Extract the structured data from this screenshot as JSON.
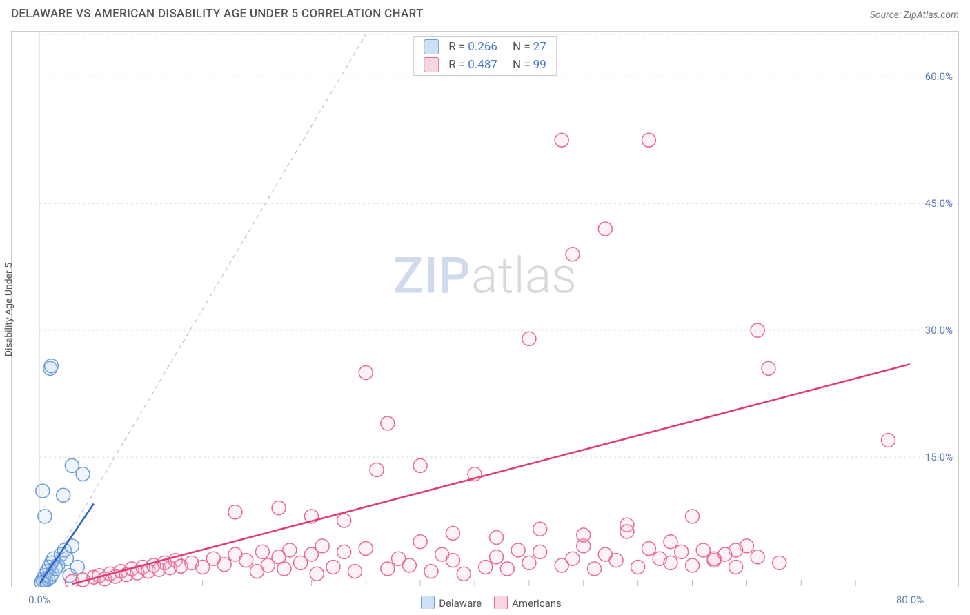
{
  "title": "DELAWARE VS AMERICAN DISABILITY AGE UNDER 5 CORRELATION CHART",
  "source": "Source: ZipAtlas.com",
  "ylabel": "Disability Age Under 5",
  "watermark": {
    "part1": "ZIP",
    "part2": "atlas"
  },
  "chart": {
    "type": "scatter",
    "background_color": "#ffffff",
    "grid_color": "#d8d8d8",
    "axis_color": "#cccccc",
    "tick_color": "#bbbbbb",
    "label_color": "#5b7db1",
    "xlim": [
      0,
      80
    ],
    "ylim": [
      0,
      65
    ],
    "x_axis_ticks": [
      0,
      80
    ],
    "x_axis_labels": [
      "0.0%",
      "80.0%"
    ],
    "x_minor_ticks": [
      5,
      10,
      15,
      20,
      25,
      30,
      35,
      40,
      45,
      50,
      55,
      60,
      65,
      70,
      75
    ],
    "y_gridlines": [
      15,
      30,
      45,
      60,
      65
    ],
    "y_axis_labels": [
      {
        "v": 15,
        "t": "15.0%"
      },
      {
        "v": 30,
        "t": "30.0%"
      },
      {
        "v": 45,
        "t": "45.0%"
      },
      {
        "v": 60,
        "t": "60.0%"
      }
    ],
    "marker_radius": 10,
    "marker_stroke_width": 1.5,
    "marker_fill_opacity": 0.18,
    "series": [
      {
        "name": "Delaware",
        "color_stroke": "#6b9bd8",
        "color_fill": "#a9c6ea",
        "trend_color": "#2a64c9",
        "trend_width": 2.5,
        "trend": {
          "x1": 0,
          "y1": 0,
          "x2": 5,
          "y2": 9.5
        },
        "points": [
          [
            0.2,
            0.2
          ],
          [
            0.3,
            0.5
          ],
          [
            0.4,
            0.3
          ],
          [
            0.5,
            1.0
          ],
          [
            0.6,
            0.4
          ],
          [
            0.7,
            1.5
          ],
          [
            0.8,
            0.6
          ],
          [
            0.9,
            2.0
          ],
          [
            1.0,
            0.8
          ],
          [
            1.1,
            2.5
          ],
          [
            1.2,
            1.2
          ],
          [
            1.3,
            3.0
          ],
          [
            1.5,
            1.8
          ],
          [
            1.7,
            2.2
          ],
          [
            2.0,
            3.5
          ],
          [
            2.3,
            4.0
          ],
          [
            2.5,
            3.0
          ],
          [
            3.0,
            4.5
          ],
          [
            1.0,
            25.5
          ],
          [
            1.1,
            25.8
          ],
          [
            2.2,
            10.5
          ],
          [
            3.0,
            14.0
          ],
          [
            4.0,
            13.0
          ],
          [
            0.5,
            8.0
          ],
          [
            0.3,
            11.0
          ],
          [
            2.8,
            1.0
          ],
          [
            3.5,
            2.0
          ]
        ]
      },
      {
        "name": "Americans",
        "color_stroke": "#e86a93",
        "color_fill": "#f5b8cc",
        "trend_color": "#e03a72",
        "trend_width": 2.5,
        "trend": {
          "x1": 3,
          "y1": 0,
          "x2": 80,
          "y2": 26
        },
        "points": [
          [
            3,
            0.3
          ],
          [
            4,
            0.5
          ],
          [
            5,
            0.8
          ],
          [
            5.5,
            1.0
          ],
          [
            6,
            0.6
          ],
          [
            6.5,
            1.2
          ],
          [
            7,
            0.9
          ],
          [
            7.5,
            1.5
          ],
          [
            8,
            1.1
          ],
          [
            8.5,
            1.8
          ],
          [
            9,
            1.3
          ],
          [
            9.5,
            2.0
          ],
          [
            10,
            1.5
          ],
          [
            10.5,
            2.2
          ],
          [
            11,
            1.7
          ],
          [
            11.5,
            2.5
          ],
          [
            12,
            1.9
          ],
          [
            12.5,
            2.8
          ],
          [
            13,
            2.1
          ],
          [
            14,
            2.5
          ],
          [
            15,
            2.0
          ],
          [
            16,
            3.0
          ],
          [
            17,
            2.3
          ],
          [
            18,
            3.5
          ],
          [
            19,
            2.8
          ],
          [
            20,
            1.5
          ],
          [
            20.5,
            3.8
          ],
          [
            21,
            2.2
          ],
          [
            22,
            3.2
          ],
          [
            22.5,
            1.8
          ],
          [
            23,
            4.0
          ],
          [
            24,
            2.5
          ],
          [
            25,
            3.5
          ],
          [
            25.5,
            1.2
          ],
          [
            26,
            4.5
          ],
          [
            27,
            2.0
          ],
          [
            28,
            3.8
          ],
          [
            29,
            1.5
          ],
          [
            30,
            4.2
          ],
          [
            18,
            8.5
          ],
          [
            22,
            9.0
          ],
          [
            25,
            8.0
          ],
          [
            28,
            7.5
          ],
          [
            31,
            13.5
          ],
          [
            32,
            1.8
          ],
          [
            33,
            3.0
          ],
          [
            34,
            2.2
          ],
          [
            35,
            14.0
          ],
          [
            36,
            1.5
          ],
          [
            37,
            3.5
          ],
          [
            38,
            2.8
          ],
          [
            39,
            1.2
          ],
          [
            40,
            13.0
          ],
          [
            41,
            2.0
          ],
          [
            42,
            3.2
          ],
          [
            43,
            1.8
          ],
          [
            44,
            4.0
          ],
          [
            45,
            2.5
          ],
          [
            46,
            3.8
          ],
          [
            32,
            19.0
          ],
          [
            30,
            25.0
          ],
          [
            48,
            2.2
          ],
          [
            49,
            3.0
          ],
          [
            50,
            4.5
          ],
          [
            51,
            1.8
          ],
          [
            52,
            3.5
          ],
          [
            53,
            2.8
          ],
          [
            54,
            7.0
          ],
          [
            55,
            2.0
          ],
          [
            56,
            4.2
          ],
          [
            57,
            3.0
          ],
          [
            45,
            29.0
          ],
          [
            49,
            39.0
          ],
          [
            48,
            52.5
          ],
          [
            58,
            2.5
          ],
          [
            59,
            3.8
          ],
          [
            60,
            2.2
          ],
          [
            61,
            4.0
          ],
          [
            62,
            2.8
          ],
          [
            63,
            3.5
          ],
          [
            64,
            2.0
          ],
          [
            52,
            42.0
          ],
          [
            56,
            52.5
          ],
          [
            65,
            4.5
          ],
          [
            66,
            3.2
          ],
          [
            67,
            25.5
          ],
          [
            68,
            2.5
          ],
          [
            66,
            30.0
          ],
          [
            62,
            3.0
          ],
          [
            58,
            5.0
          ],
          [
            60,
            8.0
          ],
          [
            64,
            4.0
          ],
          [
            78,
            17.0
          ],
          [
            35,
            5.0
          ],
          [
            38,
            6.0
          ],
          [
            42,
            5.5
          ],
          [
            46,
            6.5
          ],
          [
            50,
            5.8
          ],
          [
            54,
            6.2
          ]
        ]
      }
    ],
    "identity_line": {
      "color": "#b0c4de",
      "dash": "6,5",
      "width": 1.2,
      "x1": 0,
      "y1": 0,
      "x2": 30,
      "y2": 65
    }
  },
  "stats": [
    {
      "swatch_fill": "#cde0f5",
      "swatch_stroke": "#6b9bd8",
      "r": "0.266",
      "n": "27"
    },
    {
      "swatch_fill": "#f9d5e1",
      "swatch_stroke": "#e86a93",
      "r": "0.487",
      "n": "99"
    }
  ],
  "bottom_legend": [
    {
      "swatch_fill": "#cde0f5",
      "swatch_stroke": "#6b9bd8",
      "label": "Delaware"
    },
    {
      "swatch_fill": "#f9d5e1",
      "swatch_stroke": "#e86a93",
      "label": "Americans"
    }
  ]
}
